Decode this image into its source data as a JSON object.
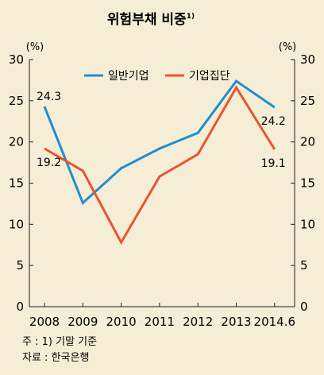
{
  "chart_data": {
    "type": "line",
    "title": "위험부채 비중",
    "title_superscript": "1)",
    "unit_left": "(%)",
    "unit_right": "(%)",
    "categories": [
      "2008",
      "2009",
      "2010",
      "2011",
      "2012",
      "2013",
      "2014.6"
    ],
    "ylim": [
      0,
      30
    ],
    "yticks": [
      0,
      5,
      10,
      15,
      20,
      25,
      30
    ],
    "grid": false,
    "legend_position": "top-center",
    "series": [
      {
        "name": "일반기업",
        "color": "#1f8fd0",
        "values": [
          24.3,
          12.6,
          16.8,
          19.2,
          21.1,
          27.4,
          24.2
        ],
        "labels": [
          {
            "index": 0,
            "text": "24.3",
            "position": "above"
          },
          {
            "index": 6,
            "text": "24.2",
            "position": "below"
          }
        ]
      },
      {
        "name": "기업집단",
        "color": "#e8552d",
        "values": [
          19.2,
          16.5,
          7.8,
          15.8,
          18.5,
          26.6,
          19.1
        ],
        "labels": [
          {
            "index": 0,
            "text": "19.2",
            "position": "below"
          },
          {
            "index": 6,
            "text": "19.1",
            "position": "below"
          }
        ]
      }
    ]
  },
  "footnotes": {
    "note": "주 : 1) 기말 기준",
    "source": "자료 : 한국은행"
  },
  "colors": {
    "background": "#f6edd6",
    "axis": "#231f20"
  }
}
